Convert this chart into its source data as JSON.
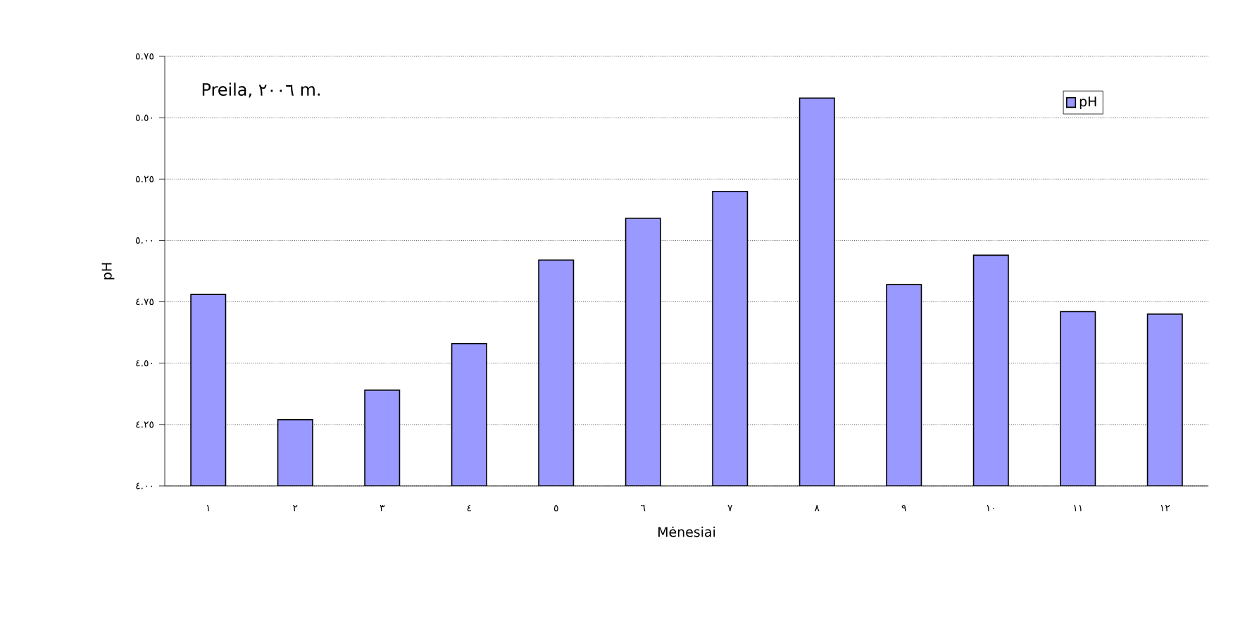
{
  "chart_data": {
    "type": "bar",
    "annotations": [
      "Preila, ٢٠٠٦ m."
    ],
    "xlabel": "Mėnesiai",
    "ylabel": "pH",
    "categories": [
      "١",
      "٢",
      "٣",
      "٤",
      "٥",
      "٦",
      "٧",
      "٨",
      "٩",
      "١٠",
      "١١",
      "١٢"
    ],
    "series": [
      {
        "name": "pH",
        "color": "#9999ff",
        "values": [
          4.78,
          4.27,
          4.39,
          4.58,
          4.92,
          5.09,
          5.2,
          5.58,
          4.82,
          4.94,
          4.71,
          4.7
        ]
      }
    ],
    "ylim": [
      4.0,
      5.75
    ],
    "yticks": [
      {
        "value": 4.0,
        "label": "٤.٠٠"
      },
      {
        "value": 4.25,
        "label": "٤.٢٥"
      },
      {
        "value": 4.5,
        "label": "٤.٥٠"
      },
      {
        "value": 4.75,
        "label": "٤.٧٥"
      },
      {
        "value": 5.0,
        "label": "٥.٠٠"
      },
      {
        "value": 5.25,
        "label": "٥.٢٥"
      },
      {
        "value": 5.5,
        "label": "٥.٥٠"
      },
      {
        "value": 5.75,
        "label": "٥.٧٥"
      }
    ],
    "grid": "y",
    "legend": "top right"
  }
}
